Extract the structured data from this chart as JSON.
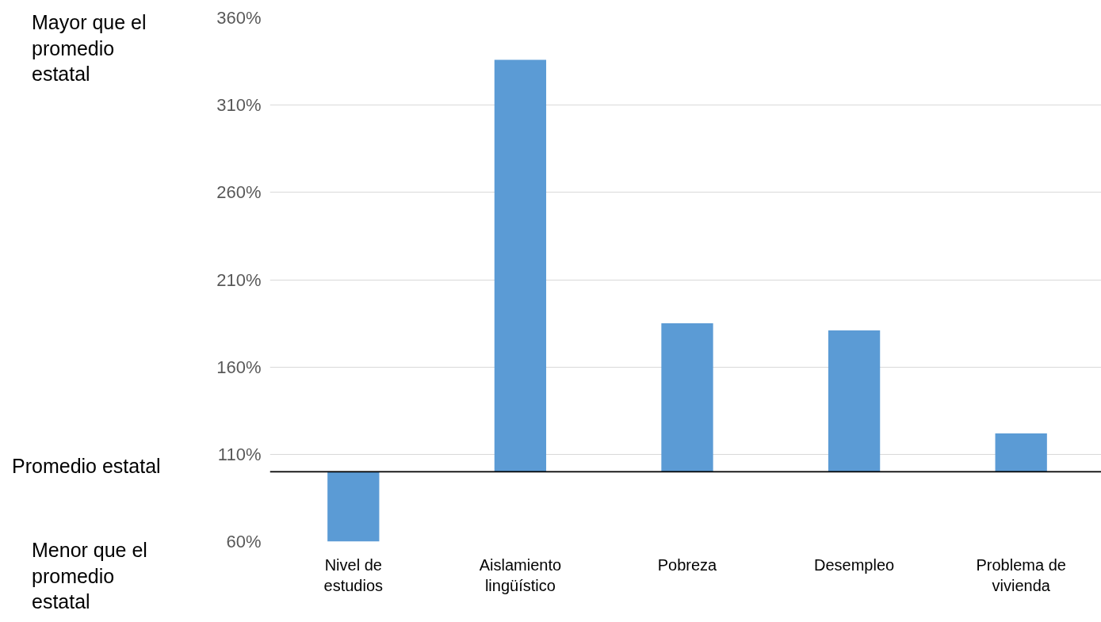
{
  "chart_data": {
    "type": "bar",
    "categories": [
      "Nivel de estudios",
      "Aislamiento lingüístico",
      "Pobreza",
      "Desempleo",
      "Problema de vivienda"
    ],
    "base": [
      100,
      100,
      100,
      100,
      100
    ],
    "values": [
      -40,
      236,
      85,
      81,
      22
    ],
    "color": "#5b9bd5",
    "ylim": [
      60,
      360
    ],
    "yticks": [
      {
        "value": 60,
        "label": "60%"
      },
      {
        "value": 110,
        "label": "110%"
      },
      {
        "value": 160,
        "label": "160%"
      },
      {
        "value": 210,
        "label": "210%"
      },
      {
        "value": 260,
        "label": "260%"
      },
      {
        "value": 310,
        "label": "310%"
      },
      {
        "value": 360,
        "label": "360%"
      }
    ],
    "grid": "y",
    "ref_lines": [
      {
        "axis": "y",
        "value": 100,
        "label": "Promedio estatal",
        "color": "#000000"
      }
    ],
    "annotations": [
      "Mayor que el promedio estatal",
      "Menor que el promedio estatal"
    ]
  }
}
